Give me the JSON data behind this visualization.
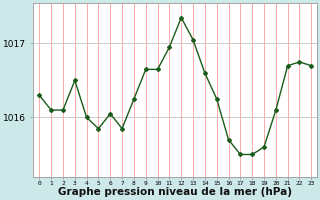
{
  "x": [
    0,
    1,
    2,
    3,
    4,
    5,
    6,
    7,
    8,
    9,
    10,
    11,
    12,
    13,
    14,
    15,
    16,
    17,
    18,
    19,
    20,
    21,
    22,
    23
  ],
  "y": [
    1016.3,
    1016.1,
    1016.1,
    1016.5,
    1016.0,
    1015.85,
    1016.05,
    1015.85,
    1016.25,
    1016.65,
    1016.65,
    1016.95,
    1017.35,
    1017.05,
    1016.6,
    1016.25,
    1015.7,
    1015.5,
    1015.5,
    1015.6,
    1016.1,
    1016.7,
    1016.75,
    1016.7
  ],
  "line_color": "#1a5c1a",
  "marker_color": "#1a5c1a",
  "fig_bg_color": "#cce8e8",
  "plot_bg_color": "#ffffff",
  "vgrid_color": "#ffaaaa",
  "hgrid_color": "#cccccc",
  "xlabel": "Graphe pression niveau de la mer (hPa)",
  "xlabel_fontsize": 7.5,
  "yticks": [
    1016,
    1017
  ],
  "ylim": [
    1015.2,
    1017.55
  ],
  "xlim": [
    -0.5,
    23.5
  ]
}
